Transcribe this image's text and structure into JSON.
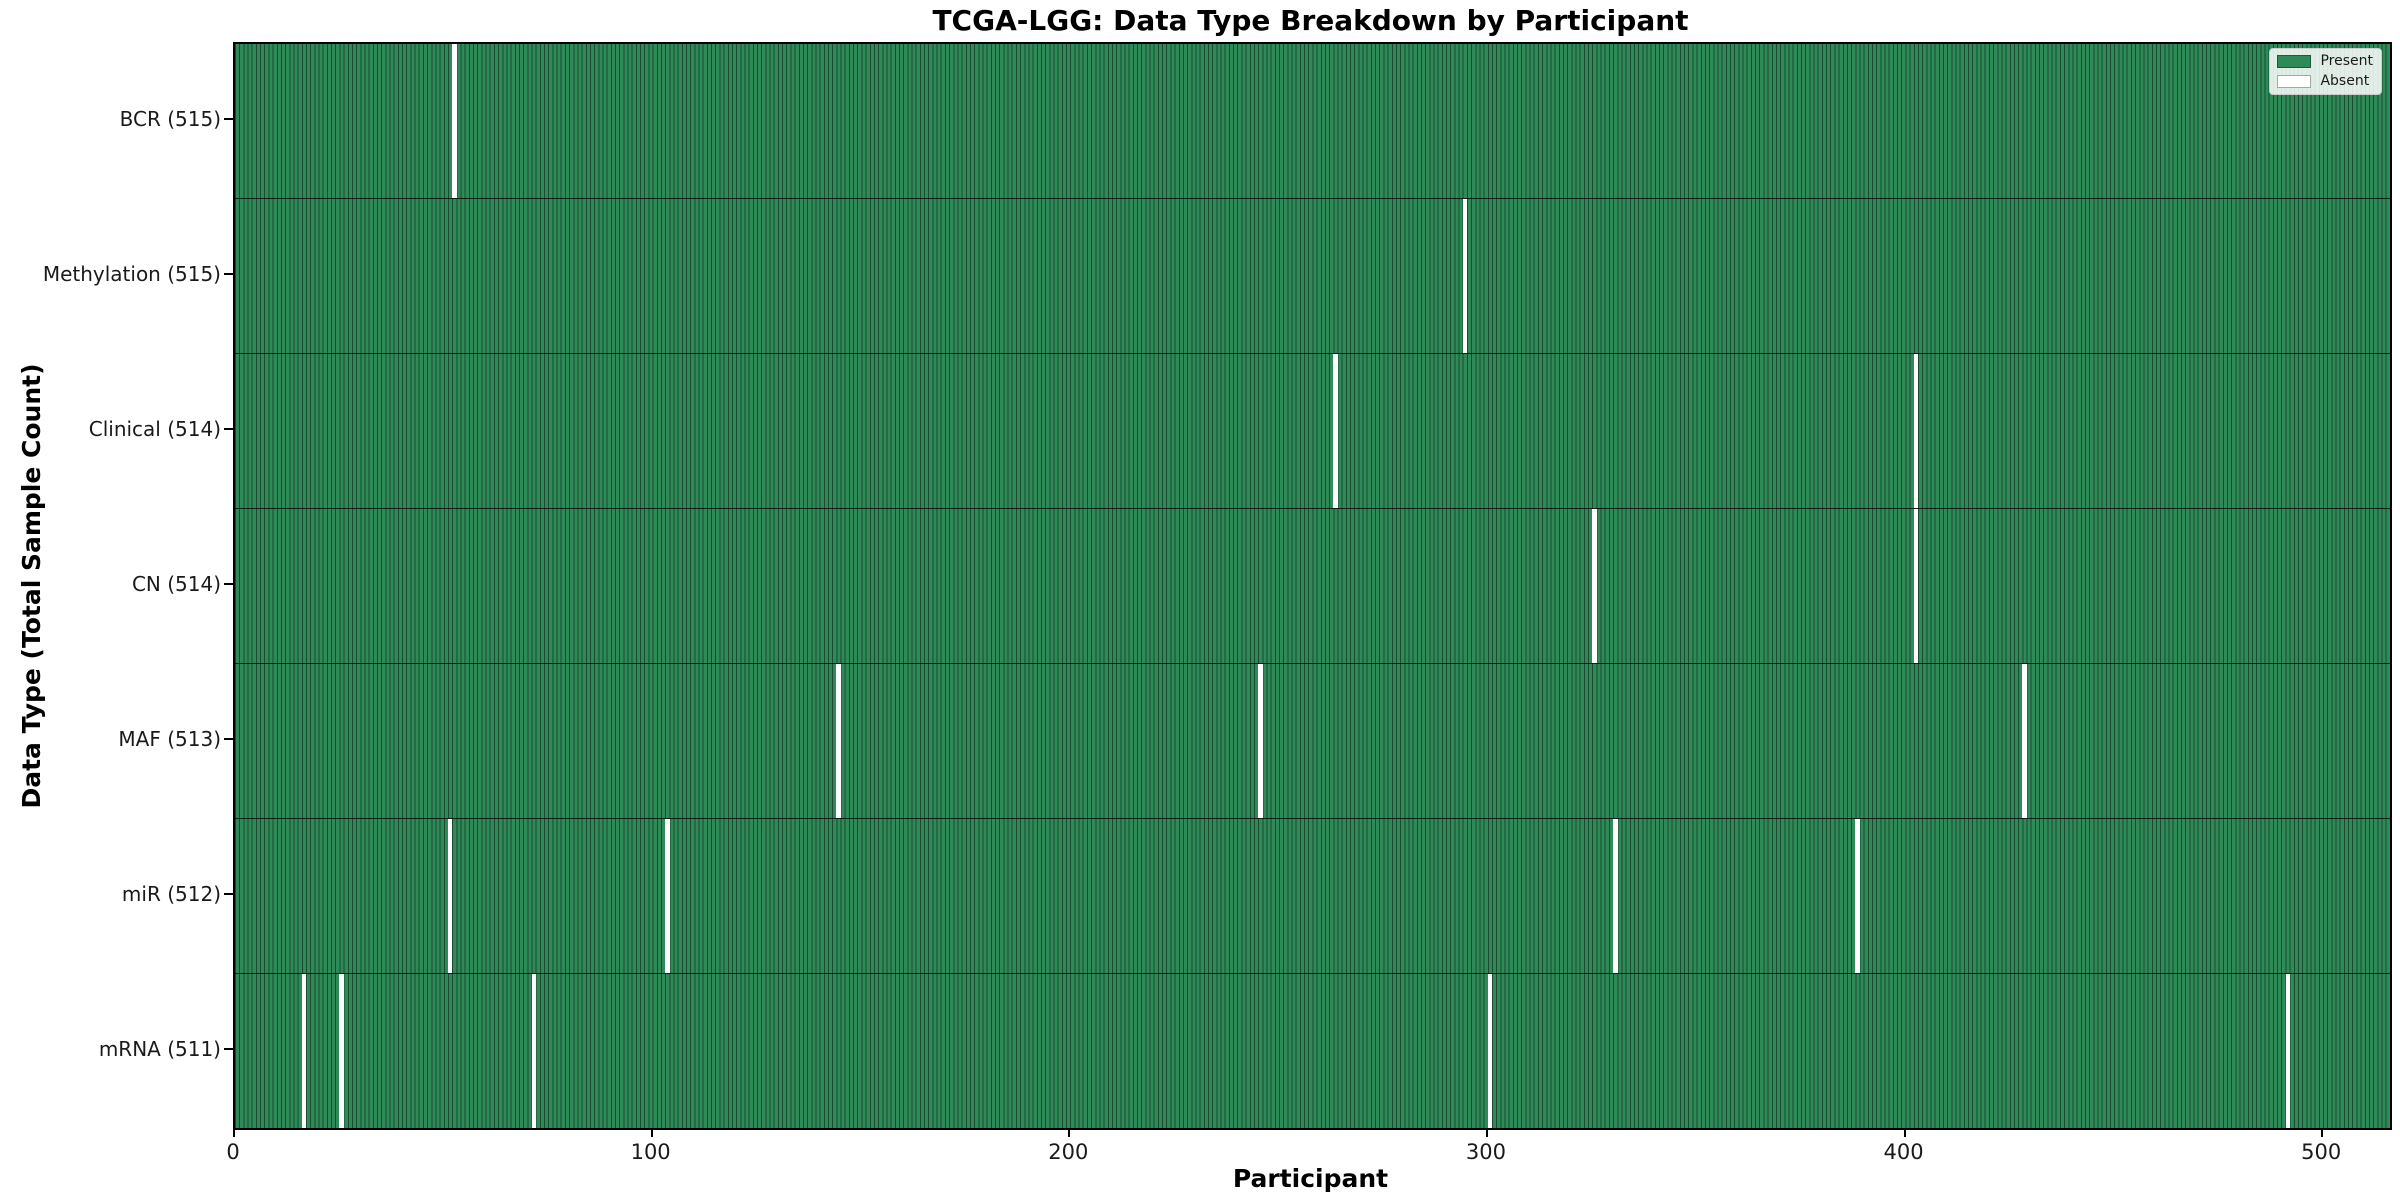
{
  "title": "TCGA-LGG: Data Type Breakdown by Participant",
  "colors": {
    "present": "#2e8b57",
    "absent": "#ffffff",
    "cell_edge": "#1b4a31",
    "spine": "#000000",
    "legend_bg": "#f2f2f2"
  },
  "legend": {
    "items": [
      {
        "label": "Present",
        "color": "#2e8b57"
      },
      {
        "label": "Absent",
        "color": "#ffffff"
      }
    ]
  },
  "chart_data": {
    "type": "heatmap",
    "title": "TCGA-LGG: Data Type Breakdown by Participant",
    "xlabel": "Participant",
    "ylabel": "Data Type (Total Sample Count)",
    "x_ticks": [
      0,
      100,
      200,
      300,
      400,
      500
    ],
    "x_range": [
      0,
      516
    ],
    "n_participants": 516,
    "grid": false,
    "legend_position": "upper right",
    "value_encoding": {
      "present": 1,
      "absent": 0
    },
    "rows": [
      {
        "data_type": "BCR",
        "label": "BCR (515)",
        "present_count": 515,
        "absent_participants": [
          52
        ]
      },
      {
        "data_type": "Methylation",
        "label": "Methylation (515)",
        "present_count": 515,
        "absent_participants": [
          294
        ]
      },
      {
        "data_type": "Clinical",
        "label": "Clinical (514)",
        "present_count": 514,
        "absent_participants": [
          263,
          402
        ]
      },
      {
        "data_type": "CN",
        "label": "CN (514)",
        "present_count": 514,
        "absent_participants": [
          325,
          402
        ]
      },
      {
        "data_type": "MAF",
        "label": "MAF (513)",
        "present_count": 513,
        "absent_participants": [
          144,
          245,
          428
        ]
      },
      {
        "data_type": "miR",
        "label": "miR (512)",
        "present_count": 512,
        "absent_participants": [
          51,
          103,
          330,
          388
        ]
      },
      {
        "data_type": "mRNA",
        "label": "mRNA (511)",
        "present_count": 511,
        "absent_participants": [
          16,
          25,
          71,
          300,
          491
        ]
      }
    ]
  }
}
